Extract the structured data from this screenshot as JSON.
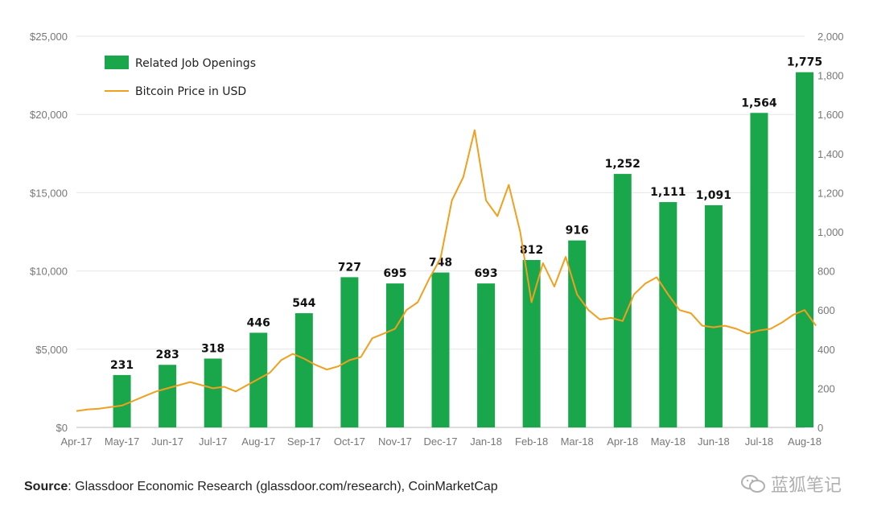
{
  "chart_data": {
    "type": "bar+line",
    "categories": [
      "Apr-17",
      "May-17",
      "Jun-17",
      "Jul-17",
      "Aug-17",
      "Sep-17",
      "Oct-17",
      "Nov-17",
      "Dec-17",
      "Jan-18",
      "Feb-18",
      "Mar-18",
      "Apr-18",
      "May-18",
      "Jun-18",
      "Jul-18",
      "Aug-18"
    ],
    "bar_series": {
      "name": "Related Job Openings",
      "color": "#1aa64a",
      "axis": "right",
      "categories": [
        "May-17",
        "Jun-17",
        "Jul-17",
        "Aug-17",
        "Sep-17",
        "Oct-17",
        "Nov-17",
        "Dec-17",
        "Jan-18",
        "Feb-18",
        "Mar-18",
        "Apr-18",
        "May-18",
        "Jun-18",
        "Jul-18",
        "Aug-18"
      ],
      "values": [
        231,
        283,
        318,
        446,
        544,
        727,
        695,
        748,
        693,
        812,
        916,
        1252,
        1111,
        1091,
        1564,
        1775
      ],
      "labels": [
        "231",
        "283",
        "318",
        "446",
        "544",
        "727",
        "695",
        "748",
        "693",
        "812",
        "916",
        "1,252",
        "1,111",
        "1,091",
        "1,564",
        "1,775"
      ],
      "bar_heights_in_left_axis_units": [
        3350,
        4000,
        4400,
        6050,
        7300,
        9600,
        9200,
        9900,
        9200,
        10700,
        11950,
        16200,
        14400,
        14200,
        20100,
        22700
      ]
    },
    "line_series": {
      "name": "Bitcoin Price in USD",
      "color": "#f0a01e",
      "axis": "left",
      "points": [
        [
          0,
          1050
        ],
        [
          0.25,
          1150
        ],
        [
          0.5,
          1200
        ],
        [
          0.75,
          1300
        ],
        [
          1,
          1400
        ],
        [
          1.25,
          1700
        ],
        [
          1.5,
          2000
        ],
        [
          1.75,
          2300
        ],
        [
          2,
          2500
        ],
        [
          2.25,
          2700
        ],
        [
          2.5,
          2900
        ],
        [
          2.75,
          2700
        ],
        [
          3,
          2500
        ],
        [
          3.25,
          2600
        ],
        [
          3.5,
          2300
        ],
        [
          3.75,
          2700
        ],
        [
          4,
          3100
        ],
        [
          4.25,
          3500
        ],
        [
          4.5,
          4300
        ],
        [
          4.75,
          4700
        ],
        [
          5,
          4400
        ],
        [
          5.25,
          4000
        ],
        [
          5.5,
          3700
        ],
        [
          5.75,
          3900
        ],
        [
          6,
          4300
        ],
        [
          6.25,
          4500
        ],
        [
          6.5,
          5700
        ],
        [
          6.75,
          6000
        ],
        [
          7,
          6300
        ],
        [
          7.25,
          7500
        ],
        [
          7.5,
          8000
        ],
        [
          7.75,
          9500
        ],
        [
          8,
          10800
        ],
        [
          8.25,
          14500
        ],
        [
          8.5,
          16000
        ],
        [
          8.75,
          19000
        ],
        [
          9,
          14500
        ],
        [
          9.25,
          13500
        ],
        [
          9.5,
          15500
        ],
        [
          9.75,
          12500
        ],
        [
          10,
          8000
        ],
        [
          10.25,
          10500
        ],
        [
          10.5,
          9000
        ],
        [
          10.75,
          10900
        ],
        [
          11,
          8500
        ],
        [
          11.25,
          7500
        ],
        [
          11.5,
          6900
        ],
        [
          11.75,
          7000
        ],
        [
          12,
          6800
        ],
        [
          12.25,
          8500
        ],
        [
          12.5,
          9200
        ],
        [
          12.75,
          9600
        ],
        [
          13,
          8500
        ],
        [
          13.25,
          7500
        ],
        [
          13.5,
          7300
        ],
        [
          13.75,
          6500
        ],
        [
          14,
          6400
        ],
        [
          14.25,
          6500
        ],
        [
          14.5,
          6300
        ],
        [
          14.75,
          6000
        ],
        [
          15,
          6200
        ],
        [
          15.25,
          6300
        ],
        [
          15.5,
          6700
        ],
        [
          15.75,
          7200
        ],
        [
          16,
          7500
        ],
        [
          16.25,
          6500
        ]
      ]
    },
    "left_axis": {
      "ticks": [
        "$0",
        "$5,000",
        "$10,000",
        "$15,000",
        "$20,000",
        "$25,000"
      ],
      "range": [
        0,
        25000
      ]
    },
    "right_axis": {
      "ticks": [
        "0",
        "200",
        "400",
        "600",
        "800",
        "1,000",
        "1,200",
        "1,400",
        "1,600",
        "1,800",
        "2,000"
      ],
      "range": [
        0,
        2000
      ]
    },
    "grid": true,
    "legend_position": "top-left"
  },
  "source": {
    "label": "Source",
    "text": ": Glassdoor Economic Research (glassdoor.com/research), CoinMarketCap"
  },
  "watermark": {
    "text": "蓝狐笔记"
  }
}
